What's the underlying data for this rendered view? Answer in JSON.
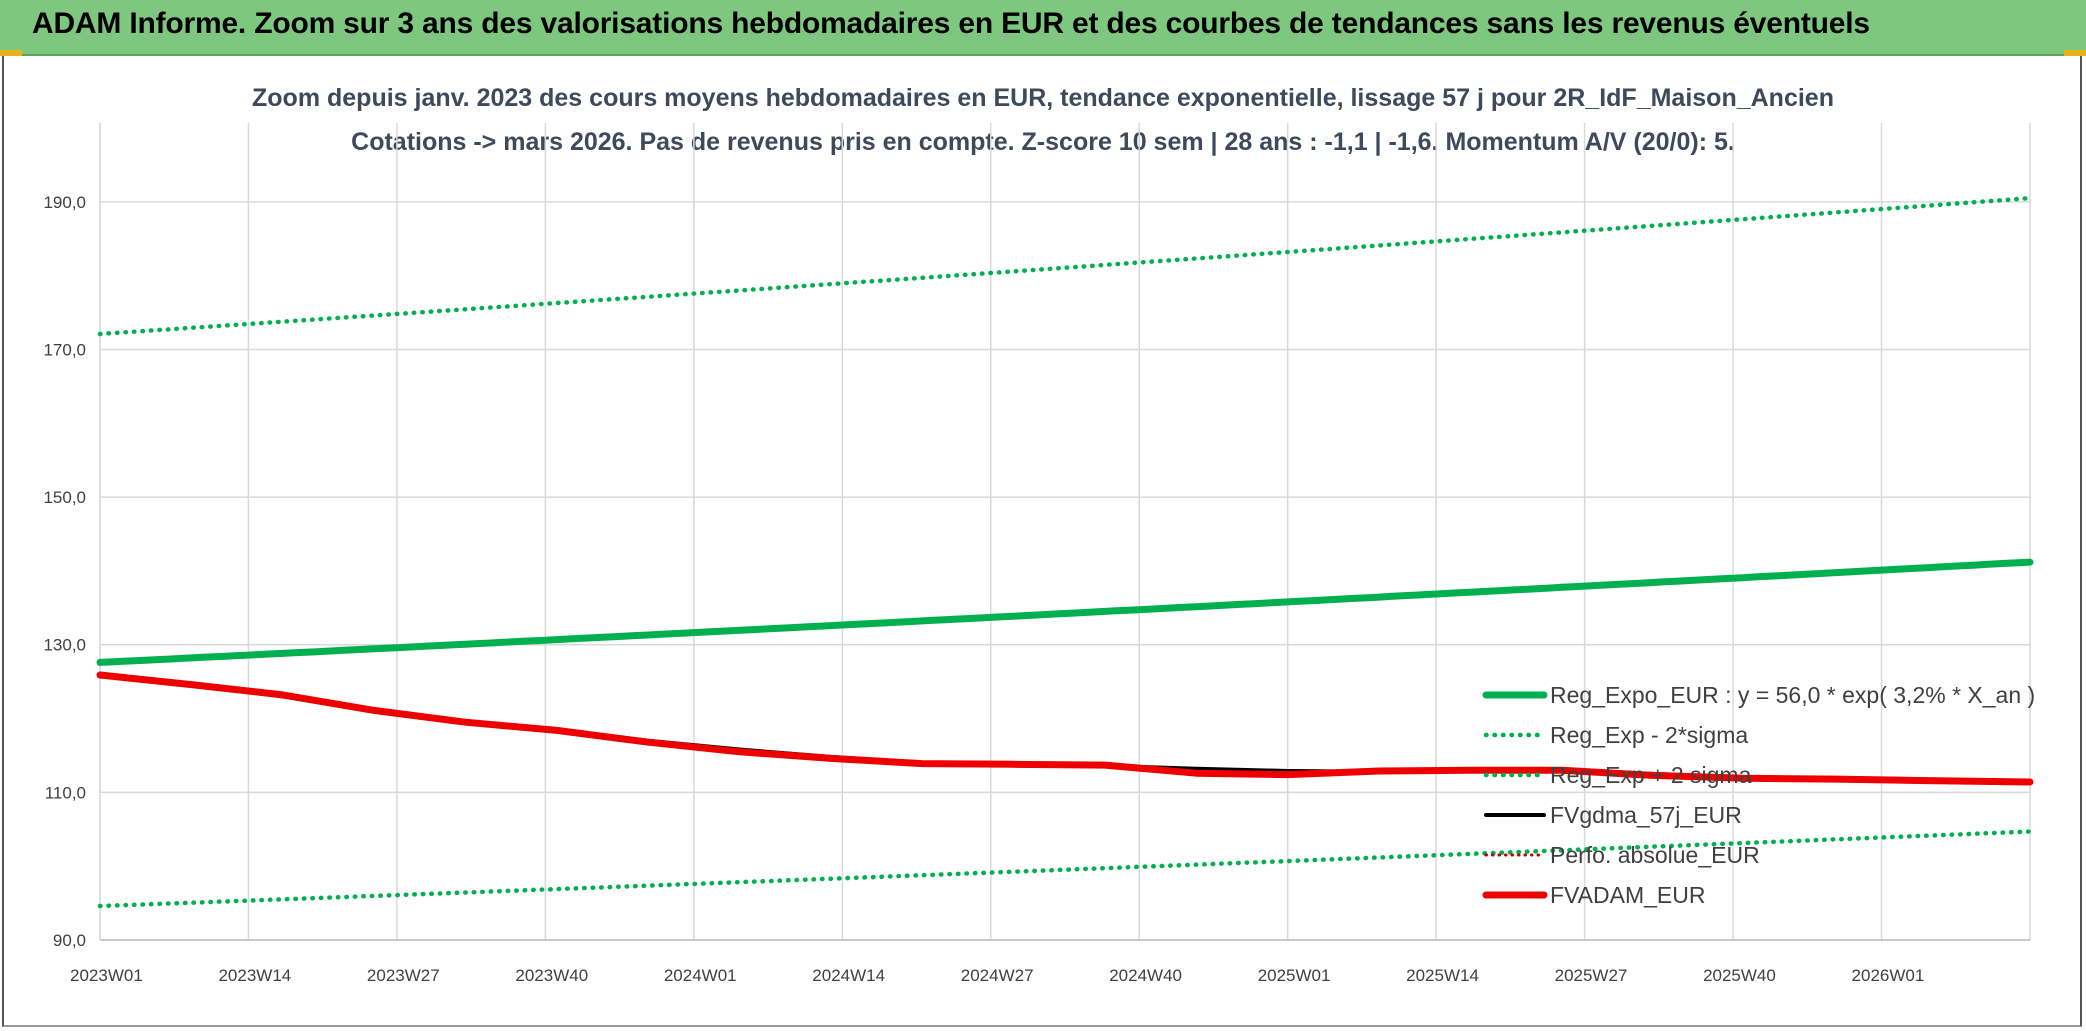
{
  "header": {
    "title": "ADAM Informe. Zoom sur 3 ans des valorisations hebdomadaires en EUR et des courbes de tendances sans les revenus éventuels"
  },
  "colors": {
    "banner": "#7ec77e",
    "regression": "#00b050",
    "fvgdma": "#000000",
    "fvadam": "#ee0000",
    "grid": "#d9d9d9"
  },
  "chart_data": {
    "type": "line",
    "title": "Zoom depuis janv. 2023 des cours moyens hebdomadaires en EUR, tendance exponentielle, lissage 57 j pour 2R_IdF_Maison_Ancien",
    "subtitle": "Cotations -> mars 2026. Pas de revenus pris en compte. Z-score 10 sem | 28 ans : -1,1 | -1,6. Momentum A/V (20/0): 5.",
    "xlabel": "",
    "ylabel": "",
    "ylim": [
      90,
      200
    ],
    "yticks": [
      "90,0",
      "110,0",
      "130,0",
      "150,0",
      "170,0",
      "190,0"
    ],
    "ytick_values": [
      90,
      110,
      130,
      150,
      170,
      190
    ],
    "xticks": [
      "2023W01",
      "2023W14",
      "2023W27",
      "2023W40",
      "2024W01",
      "2024W14",
      "2024W27",
      "2024W40",
      "2025W01",
      "2025W14",
      "2025W27",
      "2025W40",
      "2026W01"
    ],
    "x_range_weeks": [
      0,
      169
    ],
    "grid": true,
    "legend_position": "bottom-right",
    "series": [
      {
        "name": "Reg_Expo_EUR : y = 56,0 * exp( 3,2% *  X_an )",
        "style": "solid-thick",
        "color": "#00b050",
        "x": [
          0,
          169
        ],
        "values": [
          127.6,
          141.2
        ]
      },
      {
        "name": "Reg_Exp - 2*sigma",
        "style": "dotted",
        "color": "#00b050",
        "x": [
          0,
          169
        ],
        "values": [
          94.6,
          104.7
        ]
      },
      {
        "name": "Reg_Exp + 2 sigma",
        "style": "dotted",
        "color": "#00b050",
        "x": [
          0,
          169
        ],
        "values": [
          172.1,
          190.5
        ]
      },
      {
        "name": "FVgdma_57j_EUR",
        "style": "solid",
        "color": "#000000",
        "x": [
          0,
          8,
          16,
          24,
          32,
          40,
          48,
          56,
          64,
          72,
          80,
          88,
          96,
          104,
          112,
          120,
          128,
          136,
          144,
          152,
          160,
          169
        ],
        "values": [
          125.9,
          124.5,
          123.0,
          121.0,
          119.5,
          118.5,
          117.0,
          115.8,
          114.8,
          114.0,
          113.8,
          113.6,
          113.2,
          112.9,
          112.8,
          113.1,
          113.0,
          112.5,
          112.0,
          111.7,
          111.6,
          111.4
        ]
      },
      {
        "name": "Perfo. absolue_EUR",
        "style": "dotted-small",
        "color": "#c00000",
        "x": [
          0,
          8,
          16,
          24,
          32,
          40,
          48,
          56,
          64,
          72,
          80,
          88,
          96,
          104,
          112,
          120,
          128,
          136,
          144,
          152,
          160,
          169
        ],
        "values": [
          125.9,
          124.5,
          123.0,
          121.0,
          119.5,
          118.5,
          117.0,
          115.6,
          114.6,
          113.8,
          113.8,
          113.7,
          112.6,
          112.7,
          113.1,
          113.0,
          113.0,
          112.3,
          111.9,
          111.7,
          111.6,
          111.4
        ]
      },
      {
        "name": "FVADAM_EUR",
        "style": "solid-thick",
        "color": "#ee0000",
        "x": [
          0,
          8,
          16,
          24,
          32,
          40,
          48,
          56,
          64,
          72,
          80,
          88,
          96,
          104,
          112,
          120,
          128,
          136,
          144,
          152,
          160,
          169
        ],
        "values": [
          125.9,
          124.6,
          123.2,
          121.1,
          119.5,
          118.4,
          116.8,
          115.5,
          114.6,
          113.9,
          113.8,
          113.7,
          112.6,
          112.4,
          112.9,
          113.0,
          113.0,
          112.3,
          111.9,
          111.8,
          111.6,
          111.4
        ]
      }
    ]
  }
}
